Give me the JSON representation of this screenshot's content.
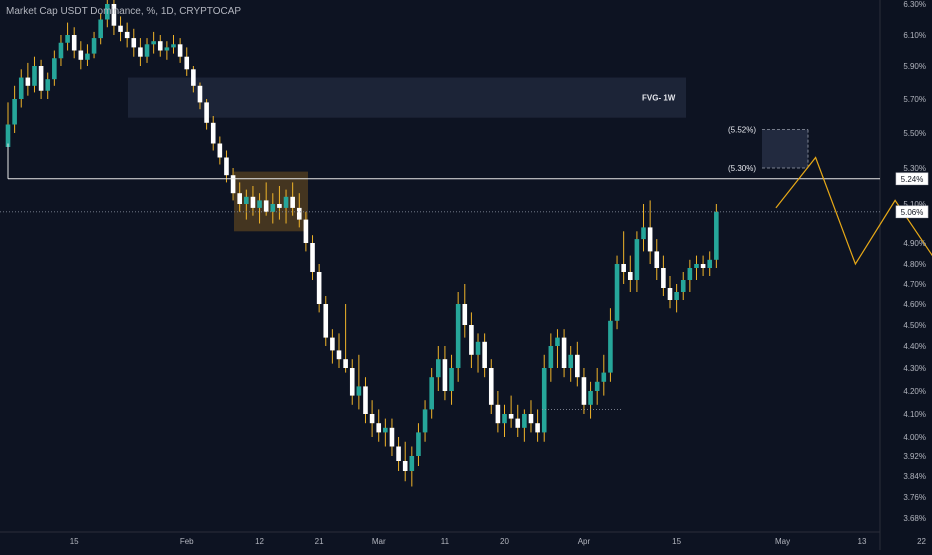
{
  "header": {
    "title": "Market Cap USDT Dominance, %, 1D, CRYPTOCAP"
  },
  "colors": {
    "background": "#0c1220",
    "candle_up": "#26a69a",
    "candle_down": "#ffffff",
    "wick": "#f0b429",
    "projection": "#e6a817",
    "box": "#2a3349",
    "highlight": "#5c4420",
    "text": "#b2b5be"
  },
  "chart_data": {
    "type": "candlestick",
    "title": "Market Cap USDT Dominance, %, 1D, CRYPTOCAP",
    "y_unit": "%",
    "x_ticks": [
      "15",
      "Feb",
      "12",
      "21",
      "Mar",
      "11",
      "20",
      "Apr",
      "15",
      "May",
      "13",
      "22"
    ],
    "y_ticks": [
      "6.30%",
      "6.10%",
      "5.90%",
      "5.70%",
      "5.50%",
      "5.30%",
      "5.10%",
      "4.90%",
      "4.80%",
      "4.70%",
      "4.60%",
      "4.50%",
      "4.40%",
      "4.30%",
      "4.20%",
      "4.10%",
      "4.00%",
      "3.92%",
      "3.84%",
      "3.76%",
      "3.68%"
    ],
    "price_badges": [
      {
        "label": "5.24%",
        "value": 5.24
      },
      {
        "label": "5.06%",
        "value": 5.06
      }
    ],
    "annotations": [
      {
        "type": "zone",
        "label": "FVG- 1W",
        "from": 5.59,
        "to": 5.83
      },
      {
        "type": "target-box",
        "upper_label": "(5.52%)",
        "upper": 5.52,
        "lower_label": "(5.30%)",
        "lower": 5.3
      },
      {
        "type": "consolidation-box",
        "from": 4.96,
        "to": 5.28
      },
      {
        "type": "horizontal-line",
        "value": 5.24
      }
    ],
    "candles": [
      [
        5.42,
        5.68,
        5.36,
        5.55
      ],
      [
        5.55,
        5.78,
        5.5,
        5.7
      ],
      [
        5.7,
        5.88,
        5.65,
        5.83
      ],
      [
        5.83,
        5.92,
        5.72,
        5.78
      ],
      [
        5.78,
        5.96,
        5.74,
        5.9
      ],
      [
        5.9,
        5.94,
        5.7,
        5.75
      ],
      [
        5.75,
        5.86,
        5.7,
        5.82
      ],
      [
        5.82,
        6.0,
        5.78,
        5.95
      ],
      [
        5.95,
        6.1,
        5.9,
        6.05
      ],
      [
        6.05,
        6.18,
        6.0,
        6.1
      ],
      [
        6.1,
        6.15,
        5.95,
        6.0
      ],
      [
        6.0,
        6.06,
        5.88,
        5.94
      ],
      [
        5.94,
        6.04,
        5.9,
        5.98
      ],
      [
        5.98,
        6.12,
        5.95,
        6.08
      ],
      [
        6.08,
        6.24,
        6.04,
        6.2
      ],
      [
        6.2,
        6.35,
        6.15,
        6.3
      ],
      [
        6.3,
        6.34,
        6.1,
        6.16
      ],
      [
        6.16,
        6.22,
        6.06,
        6.12
      ],
      [
        6.12,
        6.18,
        6.02,
        6.08
      ],
      [
        6.08,
        6.14,
        5.96,
        6.02
      ],
      [
        6.02,
        6.08,
        5.9,
        5.96
      ],
      [
        5.96,
        6.08,
        5.92,
        6.04
      ],
      [
        6.04,
        6.12,
        5.98,
        6.06
      ],
      [
        6.06,
        6.1,
        5.96,
        6.0
      ],
      [
        6.0,
        6.06,
        5.94,
        6.02
      ],
      [
        6.02,
        6.1,
        5.98,
        6.04
      ],
      [
        6.04,
        6.08,
        5.92,
        5.96
      ],
      [
        5.96,
        6.02,
        5.84,
        5.88
      ],
      [
        5.88,
        5.9,
        5.74,
        5.78
      ],
      [
        5.78,
        5.8,
        5.64,
        5.68
      ],
      [
        5.68,
        5.7,
        5.52,
        5.56
      ],
      [
        5.56,
        5.6,
        5.4,
        5.44
      ],
      [
        5.44,
        5.48,
        5.32,
        5.36
      ],
      [
        5.36,
        5.4,
        5.22,
        5.26
      ],
      [
        5.26,
        5.3,
        5.12,
        5.16
      ],
      [
        5.16,
        5.22,
        5.06,
        5.1
      ],
      [
        5.1,
        5.18,
        5.02,
        5.14
      ],
      [
        5.14,
        5.2,
        5.04,
        5.08
      ],
      [
        5.08,
        5.16,
        5.0,
        5.12
      ],
      [
        5.12,
        5.22,
        5.04,
        5.06
      ],
      [
        5.06,
        5.16,
        5.0,
        5.1
      ],
      [
        5.1,
        5.2,
        5.02,
        5.08
      ],
      [
        5.08,
        5.18,
        5.0,
        5.14
      ],
      [
        5.14,
        5.22,
        5.04,
        5.08
      ],
      [
        5.08,
        5.16,
        4.98,
        5.02
      ],
      [
        5.02,
        5.06,
        4.86,
        4.9
      ],
      [
        4.9,
        4.94,
        4.72,
        4.76
      ],
      [
        4.76,
        4.8,
        4.56,
        4.6
      ],
      [
        4.6,
        4.64,
        4.4,
        4.44
      ],
      [
        4.44,
        4.48,
        4.32,
        4.38
      ],
      [
        4.38,
        4.46,
        4.3,
        4.34
      ],
      [
        4.34,
        4.6,
        4.28,
        4.3
      ],
      [
        4.3,
        4.34,
        4.14,
        4.18
      ],
      [
        4.18,
        4.36,
        4.12,
        4.22
      ],
      [
        4.22,
        4.26,
        4.06,
        4.1
      ],
      [
        4.1,
        4.16,
        4.0,
        4.06
      ],
      [
        4.06,
        4.12,
        3.98,
        4.02
      ],
      [
        4.02,
        4.08,
        3.96,
        4.04
      ],
      [
        4.04,
        4.08,
        3.92,
        3.96
      ],
      [
        3.96,
        4.0,
        3.86,
        3.9
      ],
      [
        3.9,
        3.98,
        3.82,
        3.86
      ],
      [
        3.86,
        3.96,
        3.8,
        3.92
      ],
      [
        3.92,
        4.06,
        3.88,
        4.02
      ],
      [
        4.02,
        4.16,
        3.98,
        4.12
      ],
      [
        4.12,
        4.3,
        4.08,
        4.26
      ],
      [
        4.26,
        4.4,
        4.2,
        4.34
      ],
      [
        4.34,
        4.4,
        4.16,
        4.2
      ],
      [
        4.2,
        4.36,
        4.14,
        4.3
      ],
      [
        4.3,
        4.66,
        4.24,
        4.6
      ],
      [
        4.6,
        4.7,
        4.44,
        4.5
      ],
      [
        4.5,
        4.56,
        4.3,
        4.36
      ],
      [
        4.36,
        4.46,
        4.28,
        4.42
      ],
      [
        4.42,
        4.46,
        4.26,
        4.3
      ],
      [
        4.3,
        4.34,
        4.1,
        4.14
      ],
      [
        4.14,
        4.2,
        4.02,
        4.06
      ],
      [
        4.06,
        4.14,
        4.0,
        4.1
      ],
      [
        4.1,
        4.18,
        4.04,
        4.08
      ],
      [
        4.08,
        4.14,
        4.0,
        4.04
      ],
      [
        4.04,
        4.12,
        3.98,
        4.1
      ],
      [
        4.1,
        4.16,
        4.02,
        4.06
      ],
      [
        4.06,
        4.12,
        3.98,
        4.02
      ],
      [
        4.02,
        4.36,
        3.98,
        4.3
      ],
      [
        4.3,
        4.46,
        4.24,
        4.4
      ],
      [
        4.4,
        4.48,
        4.3,
        4.44
      ],
      [
        4.44,
        4.48,
        4.26,
        4.3
      ],
      [
        4.3,
        4.4,
        4.24,
        4.36
      ],
      [
        4.36,
        4.42,
        4.22,
        4.26
      ],
      [
        4.26,
        4.3,
        4.1,
        4.14
      ],
      [
        4.14,
        4.24,
        4.08,
        4.2
      ],
      [
        4.2,
        4.3,
        4.14,
        4.24
      ],
      [
        4.24,
        4.36,
        4.18,
        4.28
      ],
      [
        4.28,
        4.58,
        4.24,
        4.52
      ],
      [
        4.52,
        4.84,
        4.48,
        4.8
      ],
      [
        4.8,
        4.96,
        4.7,
        4.76
      ],
      [
        4.76,
        4.84,
        4.66,
        4.72
      ],
      [
        4.72,
        4.96,
        4.66,
        4.92
      ],
      [
        4.92,
        5.1,
        4.86,
        4.98
      ],
      [
        4.98,
        5.12,
        4.8,
        4.86
      ],
      [
        4.86,
        4.92,
        4.72,
        4.78
      ],
      [
        4.78,
        4.84,
        4.64,
        4.68
      ],
      [
        4.68,
        4.74,
        4.58,
        4.62
      ],
      [
        4.62,
        4.7,
        4.56,
        4.66
      ],
      [
        4.66,
        4.76,
        4.62,
        4.72
      ],
      [
        4.72,
        4.82,
        4.66,
        4.78
      ],
      [
        4.78,
        4.84,
        4.72,
        4.8
      ],
      [
        4.8,
        4.84,
        4.74,
        4.78
      ],
      [
        4.78,
        4.86,
        4.74,
        4.82
      ],
      [
        4.82,
        5.1,
        4.78,
        5.06
      ]
    ],
    "projection": [
      {
        "date": "2024-04-30",
        "value": 5.08
      },
      {
        "date": "2024-05-06",
        "value": 5.36
      },
      {
        "date": "2024-05-12",
        "value": 4.8
      },
      {
        "date": "2024-05-18",
        "value": 5.12
      },
      {
        "date": "2024-05-29",
        "value": 4.58
      }
    ]
  }
}
